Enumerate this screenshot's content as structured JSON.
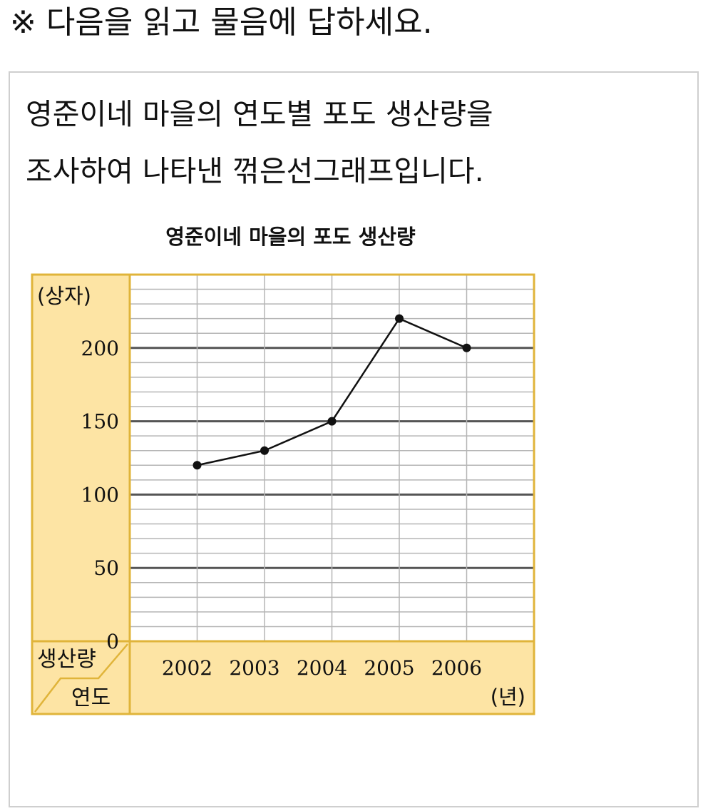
{
  "instruction": "※ 다음을 읽고 물음에 답하세요.",
  "problem": {
    "description_line1": "영준이네 마을의 연도별 포도 생산량을",
    "description_line2": "조사하여 나타낸 꺾은선그래프입니다."
  },
  "chart_data": {
    "type": "line",
    "title": "영준이네 마을의 포도 생산량",
    "y_unit": "(상자)",
    "x_unit": "(년)",
    "header_top": "생산량",
    "header_bottom": "연도",
    "categories": [
      "2002",
      "2003",
      "2004",
      "2005",
      "2006"
    ],
    "values": [
      120,
      130,
      150,
      220,
      200
    ],
    "y_ticks": [
      "0",
      "50",
      "100",
      "150",
      "200"
    ],
    "y_tick_values": [
      0,
      50,
      100,
      150,
      200
    ],
    "ylim": [
      0,
      250
    ],
    "minor_grid_step": 10,
    "major_grid_step": 50,
    "grid": true,
    "colors": {
      "panel_fill": "#fde4a4",
      "panel_border": "#e0b43a",
      "line": "#111111",
      "major_grid": "#555555",
      "minor_grid": "#b5b5b5"
    }
  }
}
